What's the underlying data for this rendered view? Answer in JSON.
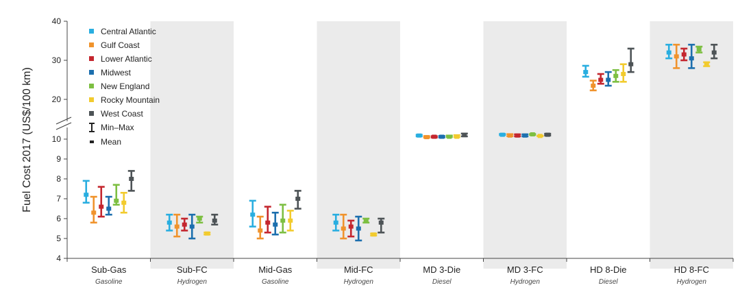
{
  "chart_data": {
    "type": "errorbar",
    "ylabel": "Fuel Cost  2017 (US$/100 km)",
    "y_ticks": [
      4,
      5,
      6,
      7,
      8,
      9,
      10,
      20,
      30,
      40
    ],
    "y_scale": "broken: 4–10 lower segment, 20–40 upper segment",
    "categories": [
      {
        "label": "Sub-Gas",
        "fuel": "Gasoline",
        "shaded": false
      },
      {
        "label": "Sub-FC",
        "fuel": "Hydrogen",
        "shaded": true
      },
      {
        "label": "Mid-Gas",
        "fuel": "Gasoline",
        "shaded": false
      },
      {
        "label": "Mid-FC",
        "fuel": "Hydrogen",
        "shaded": true
      },
      {
        "label": "MD 3-Die",
        "fuel": "Diesel",
        "shaded": false
      },
      {
        "label": "MD 3-FC",
        "fuel": "Hydrogen",
        "shaded": true
      },
      {
        "label": "HD 8-Die",
        "fuel": "Diesel",
        "shaded": false
      },
      {
        "label": "HD 8-FC",
        "fuel": "Hydrogen",
        "shaded": true
      }
    ],
    "series": [
      {
        "name": "Central Atlantic",
        "color": "#29aee0",
        "min": [
          6.8,
          5.4,
          5.6,
          5.4,
          10.7,
          11.0,
          25.8,
          30.5
        ],
        "mean": [
          7.2,
          5.8,
          6.2,
          5.8,
          10.9,
          11.1,
          27.0,
          32.0
        ],
        "max": [
          7.9,
          6.2,
          6.9,
          6.2,
          11.1,
          11.3,
          28.6,
          34.0
        ]
      },
      {
        "name": "Gulf Coast",
        "color": "#f0932c",
        "min": [
          5.8,
          5.1,
          5.0,
          5.0,
          10.35,
          10.75,
          22.3,
          28.0
        ],
        "mean": [
          6.3,
          5.6,
          5.4,
          5.5,
          10.5,
          10.9,
          23.5,
          31.0
        ],
        "max": [
          7.1,
          6.2,
          6.1,
          6.2,
          10.75,
          11.25,
          24.8,
          34.0
        ]
      },
      {
        "name": "Lower Atlantic",
        "color": "#c4262e",
        "min": [
          6.1,
          5.4,
          5.3,
          5.1,
          10.4,
          10.7,
          24.0,
          30.0
        ],
        "mean": [
          6.6,
          5.7,
          5.8,
          5.6,
          10.6,
          10.9,
          25.0,
          31.5
        ],
        "max": [
          7.6,
          6.0,
          6.6,
          5.9,
          10.75,
          11.2,
          26.5,
          33.0
        ]
      },
      {
        "name": "Midwest",
        "color": "#1c6fae",
        "min": [
          6.2,
          5.0,
          5.2,
          4.9,
          10.4,
          10.7,
          23.5,
          28.0
        ],
        "mean": [
          6.5,
          5.6,
          5.7,
          5.5,
          10.6,
          10.9,
          25.0,
          30.5
        ],
        "max": [
          7.1,
          6.2,
          6.3,
          6.1,
          10.8,
          11.2,
          27.0,
          34.0
        ]
      },
      {
        "name": "New England",
        "color": "#7dbf42",
        "min": [
          6.7,
          5.8,
          5.3,
          5.8,
          10.5,
          11.05,
          24.5,
          32.0
        ],
        "mean": [
          6.9,
          6.0,
          5.9,
          5.9,
          10.6,
          11.2,
          26.0,
          32.8
        ],
        "max": [
          7.7,
          6.1,
          6.7,
          6.0,
          10.9,
          11.3,
          27.5,
          33.5
        ]
      },
      {
        "name": "Rocky Mountain",
        "color": "#f2cb2e",
        "min": [
          6.3,
          5.2,
          5.4,
          5.15,
          10.5,
          10.75,
          24.5,
          28.5
        ],
        "mean": [
          6.8,
          5.25,
          5.9,
          5.2,
          10.6,
          10.8,
          26.5,
          29.0
        ],
        "max": [
          7.3,
          5.3,
          6.4,
          5.25,
          11.0,
          10.85,
          29.0,
          29.5
        ]
      },
      {
        "name": "West Coast",
        "color": "#4d5356",
        "min": [
          7.4,
          5.7,
          6.5,
          5.3,
          10.7,
          10.9,
          27.0,
          30.5
        ],
        "mean": [
          8.0,
          5.9,
          7.0,
          5.8,
          11.0,
          11.1,
          29.0,
          32.0
        ],
        "max": [
          8.4,
          6.2,
          7.4,
          6.0,
          11.4,
          11.35,
          33.0,
          34.0
        ]
      }
    ],
    "legend": {
      "placement": "top-left",
      "items": [
        "Central Atlantic",
        "Gulf Coast",
        "Lower Atlantic",
        "Midwest",
        "New England",
        "Rocky Mountain",
        "West Coast"
      ],
      "minmax_label": "Min–Max",
      "mean_label": "Mean"
    },
    "colors": {
      "shade": "#ebebeb",
      "axis": "#444444"
    }
  }
}
